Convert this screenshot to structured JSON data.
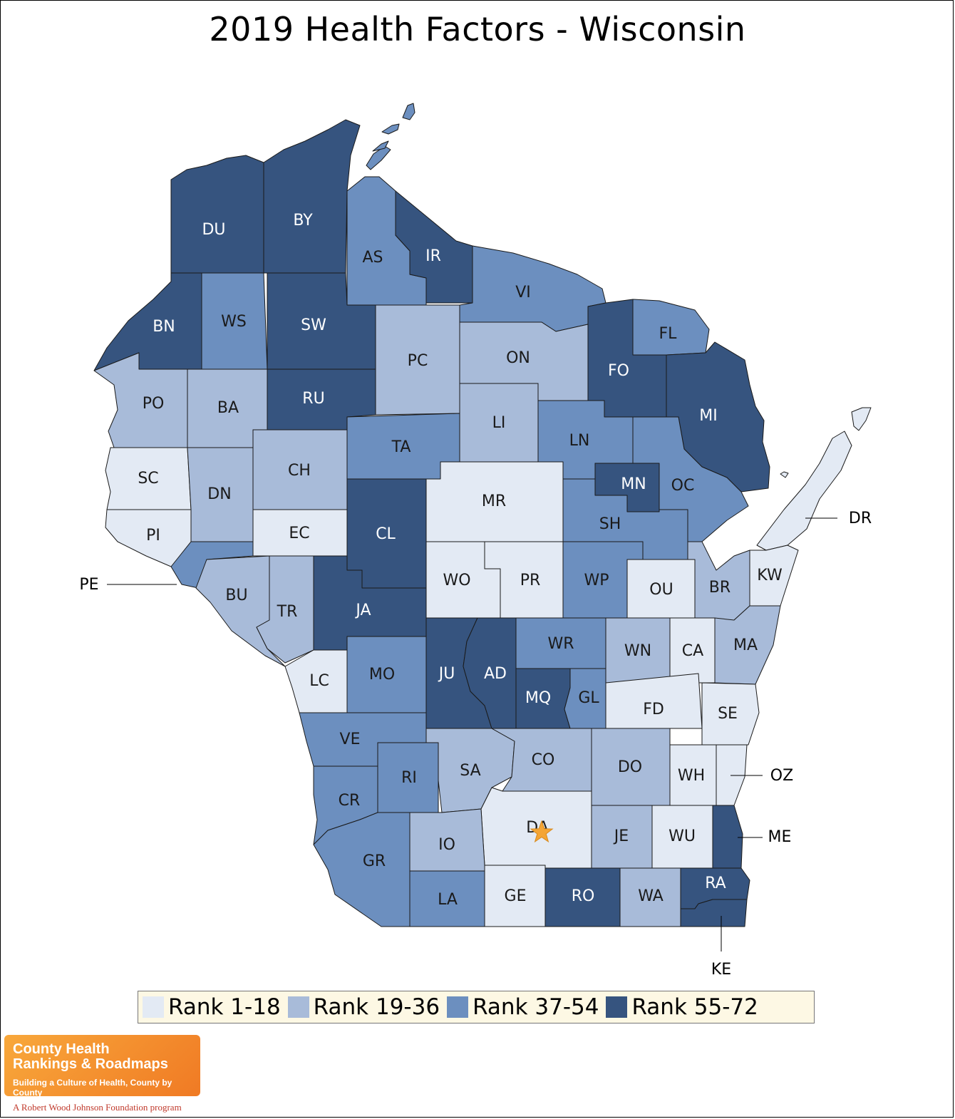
{
  "title": "2019 Health Factors - Wisconsin",
  "colors": {
    "rank_1_18": "#e3eaf4",
    "rank_19_36": "#a8bbd9",
    "rank_37_54": "#6c8fbf",
    "rank_55_72": "#36547f",
    "star": "#f4a535"
  },
  "legend": [
    {
      "label": "Rank 1-18",
      "band": "rank_1_18"
    },
    {
      "label": "Rank 19-36",
      "band": "rank_19_36"
    },
    {
      "label": "Rank 37-54",
      "band": "rank_37_54"
    },
    {
      "label": "Rank 55-72",
      "band": "rank_55_72"
    }
  ],
  "counties": [
    {
      "code": "DU",
      "band": "rank_55_72"
    },
    {
      "code": "BY",
      "band": "rank_55_72"
    },
    {
      "code": "AS",
      "band": "rank_37_54"
    },
    {
      "code": "IR",
      "band": "rank_55_72"
    },
    {
      "code": "VI",
      "band": "rank_37_54"
    },
    {
      "code": "BN",
      "band": "rank_55_72"
    },
    {
      "code": "WS",
      "band": "rank_37_54"
    },
    {
      "code": "SW",
      "band": "rank_55_72"
    },
    {
      "code": "FL",
      "band": "rank_37_54"
    },
    {
      "code": "PC",
      "band": "rank_19_36"
    },
    {
      "code": "ON",
      "band": "rank_19_36"
    },
    {
      "code": "FO",
      "band": "rank_55_72"
    },
    {
      "code": "MI",
      "band": "rank_55_72"
    },
    {
      "code": "PO",
      "band": "rank_19_36"
    },
    {
      "code": "BA",
      "band": "rank_19_36"
    },
    {
      "code": "RU",
      "band": "rank_55_72"
    },
    {
      "code": "LI",
      "band": "rank_19_36"
    },
    {
      "code": "TA",
      "band": "rank_37_54"
    },
    {
      "code": "LN",
      "band": "rank_37_54"
    },
    {
      "code": "SC",
      "band": "rank_1_18"
    },
    {
      "code": "CH",
      "band": "rank_19_36"
    },
    {
      "code": "DN",
      "band": "rank_19_36"
    },
    {
      "code": "MR",
      "band": "rank_1_18"
    },
    {
      "code": "MN",
      "band": "rank_55_72"
    },
    {
      "code": "OC",
      "band": "rank_37_54"
    },
    {
      "code": "PI",
      "band": "rank_1_18"
    },
    {
      "code": "EC",
      "band": "rank_1_18"
    },
    {
      "code": "CL",
      "band": "rank_55_72"
    },
    {
      "code": "SH",
      "band": "rank_37_54"
    },
    {
      "code": "DR",
      "band": "rank_1_18"
    },
    {
      "code": "PE",
      "band": "rank_37_54"
    },
    {
      "code": "BU",
      "band": "rank_19_36"
    },
    {
      "code": "WO",
      "band": "rank_1_18"
    },
    {
      "code": "PR",
      "band": "rank_1_18"
    },
    {
      "code": "WP",
      "band": "rank_37_54"
    },
    {
      "code": "OU",
      "band": "rank_1_18"
    },
    {
      "code": "BR",
      "band": "rank_19_36"
    },
    {
      "code": "KW",
      "band": "rank_1_18"
    },
    {
      "code": "TR",
      "band": "rank_19_36"
    },
    {
      "code": "JA",
      "band": "rank_55_72"
    },
    {
      "code": "WR",
      "band": "rank_37_54"
    },
    {
      "code": "WN",
      "band": "rank_19_36"
    },
    {
      "code": "CA",
      "band": "rank_1_18"
    },
    {
      "code": "MA",
      "band": "rank_19_36"
    },
    {
      "code": "LC",
      "band": "rank_1_18"
    },
    {
      "code": "MO",
      "band": "rank_37_54"
    },
    {
      "code": "JU",
      "band": "rank_55_72"
    },
    {
      "code": "AD",
      "band": "rank_55_72"
    },
    {
      "code": "MQ",
      "band": "rank_55_72"
    },
    {
      "code": "GL",
      "band": "rank_37_54"
    },
    {
      "code": "FD",
      "band": "rank_1_18"
    },
    {
      "code": "SE",
      "band": "rank_1_18"
    },
    {
      "code": "VE",
      "band": "rank_37_54"
    },
    {
      "code": "SA",
      "band": "rank_19_36"
    },
    {
      "code": "CO",
      "band": "rank_19_36"
    },
    {
      "code": "DO",
      "band": "rank_19_36"
    },
    {
      "code": "RI",
      "band": "rank_37_54"
    },
    {
      "code": "WH",
      "band": "rank_1_18"
    },
    {
      "code": "OZ",
      "band": "rank_1_18"
    },
    {
      "code": "CR",
      "band": "rank_37_54"
    },
    {
      "code": "DA",
      "band": "rank_1_18"
    },
    {
      "code": "IO",
      "band": "rank_19_36"
    },
    {
      "code": "JE",
      "band": "rank_19_36"
    },
    {
      "code": "WU",
      "band": "rank_1_18"
    },
    {
      "code": "ME",
      "band": "rank_55_72"
    },
    {
      "code": "GR",
      "band": "rank_37_54"
    },
    {
      "code": "LA",
      "band": "rank_37_54"
    },
    {
      "code": "GE",
      "band": "rank_1_18"
    },
    {
      "code": "RO",
      "band": "rank_55_72"
    },
    {
      "code": "WA",
      "band": "rank_19_36"
    },
    {
      "code": "RA",
      "band": "rank_55_72"
    },
    {
      "code": "KE",
      "band": "rank_55_72"
    }
  ],
  "capital_marker": {
    "county": "DA",
    "icon": "star-icon"
  },
  "logo": {
    "line1": "County Health",
    "line2": "Rankings & Roadmaps",
    "tagline": "Building a Culture of Health, County by County",
    "sub": "A Robert Wood Johnson Foundation program"
  }
}
